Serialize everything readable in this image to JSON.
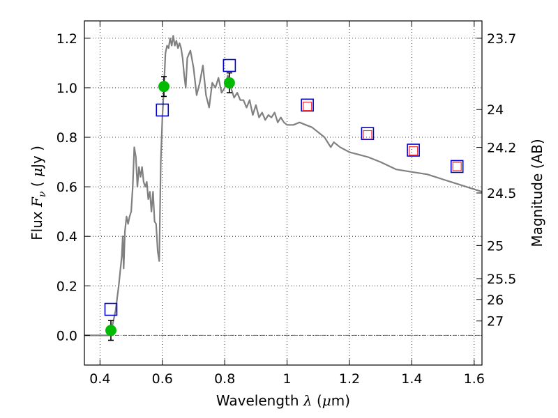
{
  "chart_data": {
    "type": "scatter",
    "title": "",
    "xlabel": "Wavelength",
    "xlabel_symbol": "λ",
    "xlabel_unit_open": "(",
    "xlabel_unit_mu": "μ",
    "xlabel_unit_rest": "m)",
    "ylabel": "Flux",
    "ylabel_symbol": "F",
    "ylabel_sub": "ν",
    "ylabel_unit_open": "(",
    "ylabel_unit_mu": "μ",
    "ylabel_unit_rest": "Jy )",
    "y2label": "Magnitude (AB)",
    "xlim": [
      0.35,
      1.625
    ],
    "ylim": [
      -0.12,
      1.27
    ],
    "grid": true,
    "x_ticks": [
      0.4,
      0.6,
      0.8,
      1.0,
      1.2,
      1.4,
      1.6
    ],
    "x_tick_labels": [
      "0.4",
      "0.6",
      "0.8",
      "1",
      "1.2",
      "1.4",
      "1.6"
    ],
    "y_ticks": [
      0.0,
      0.2,
      0.4,
      0.6,
      0.8,
      1.0,
      1.2
    ],
    "y_tick_labels": [
      "0.0",
      "0.2",
      "0.4",
      "0.6",
      "0.8",
      "1.0",
      "1.2"
    ],
    "y2_ticks": [
      {
        "label": "23.7",
        "flux": 1.2
      },
      {
        "label": "24",
        "flux": 0.912
      },
      {
        "label": "24.2",
        "flux": 0.759
      },
      {
        "label": "24.5",
        "flux": 0.575
      },
      {
        "label": "25",
        "flux": 0.363
      },
      {
        "label": "25.5",
        "flux": 0.229
      },
      {
        "label": "26",
        "flux": 0.145
      },
      {
        "label": "27",
        "flux": 0.058
      }
    ],
    "series": [
      {
        "kind": "line",
        "color": "#808080",
        "x": [
          0.35,
          0.43,
          0.44,
          0.45,
          0.46,
          0.47,
          0.473,
          0.476,
          0.48,
          0.485,
          0.49,
          0.495,
          0.5,
          0.505,
          0.51,
          0.515,
          0.52,
          0.525,
          0.53,
          0.535,
          0.54,
          0.545,
          0.55,
          0.555,
          0.56,
          0.565,
          0.57,
          0.575,
          0.58,
          0.585,
          0.59,
          0.595,
          0.6,
          0.605,
          0.61,
          0.615,
          0.62,
          0.625,
          0.63,
          0.635,
          0.64,
          0.645,
          0.65,
          0.655,
          0.66,
          0.665,
          0.67,
          0.675,
          0.68,
          0.69,
          0.7,
          0.71,
          0.72,
          0.73,
          0.74,
          0.75,
          0.76,
          0.77,
          0.78,
          0.79,
          0.8,
          0.81,
          0.82,
          0.83,
          0.84,
          0.85,
          0.86,
          0.87,
          0.88,
          0.89,
          0.9,
          0.91,
          0.92,
          0.93,
          0.94,
          0.95,
          0.96,
          0.97,
          0.98,
          0.99,
          1.0,
          1.02,
          1.04,
          1.06,
          1.08,
          1.1,
          1.12,
          1.14,
          1.15,
          1.17,
          1.2,
          1.23,
          1.26,
          1.3,
          1.35,
          1.4,
          1.45,
          1.5,
          1.55,
          1.6,
          1.625
        ],
        "y": [
          0.0,
          0.0,
          0.04,
          0.1,
          0.2,
          0.32,
          0.4,
          0.27,
          0.42,
          0.48,
          0.45,
          0.48,
          0.5,
          0.6,
          0.76,
          0.72,
          0.6,
          0.68,
          0.64,
          0.68,
          0.62,
          0.6,
          0.62,
          0.55,
          0.58,
          0.5,
          0.58,
          0.46,
          0.45,
          0.34,
          0.3,
          0.7,
          0.88,
          1.0,
          1.14,
          1.17,
          1.16,
          1.2,
          1.17,
          1.21,
          1.17,
          1.19,
          1.16,
          1.18,
          1.16,
          1.12,
          1.05,
          1.0,
          1.12,
          1.15,
          1.08,
          0.97,
          1.02,
          1.09,
          0.97,
          0.92,
          1.02,
          1.0,
          1.04,
          0.98,
          1.0,
          1.05,
          1.0,
          0.96,
          0.98,
          0.95,
          0.95,
          0.92,
          0.95,
          0.89,
          0.93,
          0.88,
          0.9,
          0.87,
          0.89,
          0.88,
          0.9,
          0.86,
          0.88,
          0.86,
          0.85,
          0.85,
          0.86,
          0.85,
          0.84,
          0.82,
          0.8,
          0.76,
          0.78,
          0.76,
          0.74,
          0.73,
          0.72,
          0.7,
          0.67,
          0.66,
          0.65,
          0.63,
          0.61,
          0.59,
          0.58
        ]
      },
      {
        "kind": "points",
        "marker": "filled-circle",
        "color": "#00bb00",
        "x": [
          0.435,
          0.605,
          0.815
        ],
        "y": [
          0.02,
          1.005,
          1.02
        ],
        "yerr": [
          0.04,
          0.04,
          0.04
        ]
      },
      {
        "kind": "points",
        "marker": "open-square",
        "color": "#0000cc",
        "x": [
          0.435,
          0.6,
          0.815,
          1.065,
          1.258,
          1.405,
          1.545
        ],
        "y": [
          0.105,
          0.91,
          1.09,
          0.93,
          0.815,
          0.748,
          0.682
        ]
      },
      {
        "kind": "points",
        "marker": "small-open-square",
        "color": "#ee3333",
        "x": [
          1.065,
          1.258,
          1.405,
          1.545
        ],
        "y": [
          0.925,
          0.81,
          0.745,
          0.682
        ]
      }
    ]
  }
}
